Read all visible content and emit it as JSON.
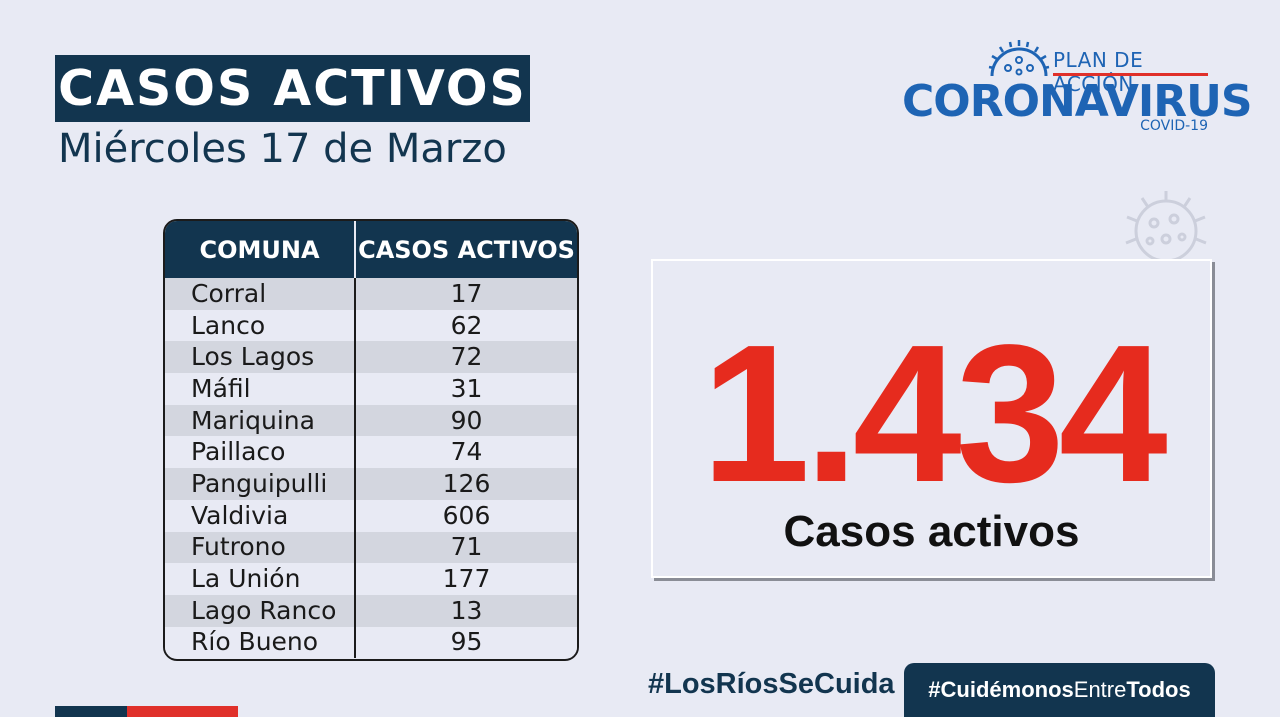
{
  "header": {
    "title": "CASOS ACTIVOS",
    "date": "Miércoles 17 de Marzo"
  },
  "logo": {
    "plan": "PLAN DE ACCIÓN",
    "name": "CORONAVIRUS",
    "sub": "COVID-19"
  },
  "table": {
    "headers": [
      "COMUNA",
      "CASOS ACTIVOS"
    ],
    "rows": [
      {
        "comuna": "Corral",
        "casos": "17"
      },
      {
        "comuna": "Lanco",
        "casos": "62"
      },
      {
        "comuna": "Los Lagos",
        "casos": "72"
      },
      {
        "comuna": "Máfil",
        "casos": "31"
      },
      {
        "comuna": "Mariquina",
        "casos": "90"
      },
      {
        "comuna": "Paillaco",
        "casos": "74"
      },
      {
        "comuna": "Panguipulli",
        "casos": "126"
      },
      {
        "comuna": "Valdivia",
        "casos": "606"
      },
      {
        "comuna": "Futrono",
        "casos": "71"
      },
      {
        "comuna": "La Unión",
        "casos": "177"
      },
      {
        "comuna": "Lago Ranco",
        "casos": "13"
      },
      {
        "comuna": "Río Bueno",
        "casos": "95"
      }
    ]
  },
  "total": {
    "value": "1.434",
    "label": "Casos activos"
  },
  "footer": {
    "hashtag1": "#LosRíosSeCuida",
    "hashtag2_parts": [
      "#",
      "Cuidémonos",
      "Entre",
      "Todos"
    ]
  },
  "colors": {
    "navy": "#12354f",
    "red": "#e62b1e",
    "blue": "#1e64b4",
    "background": "#e8eaf4"
  }
}
